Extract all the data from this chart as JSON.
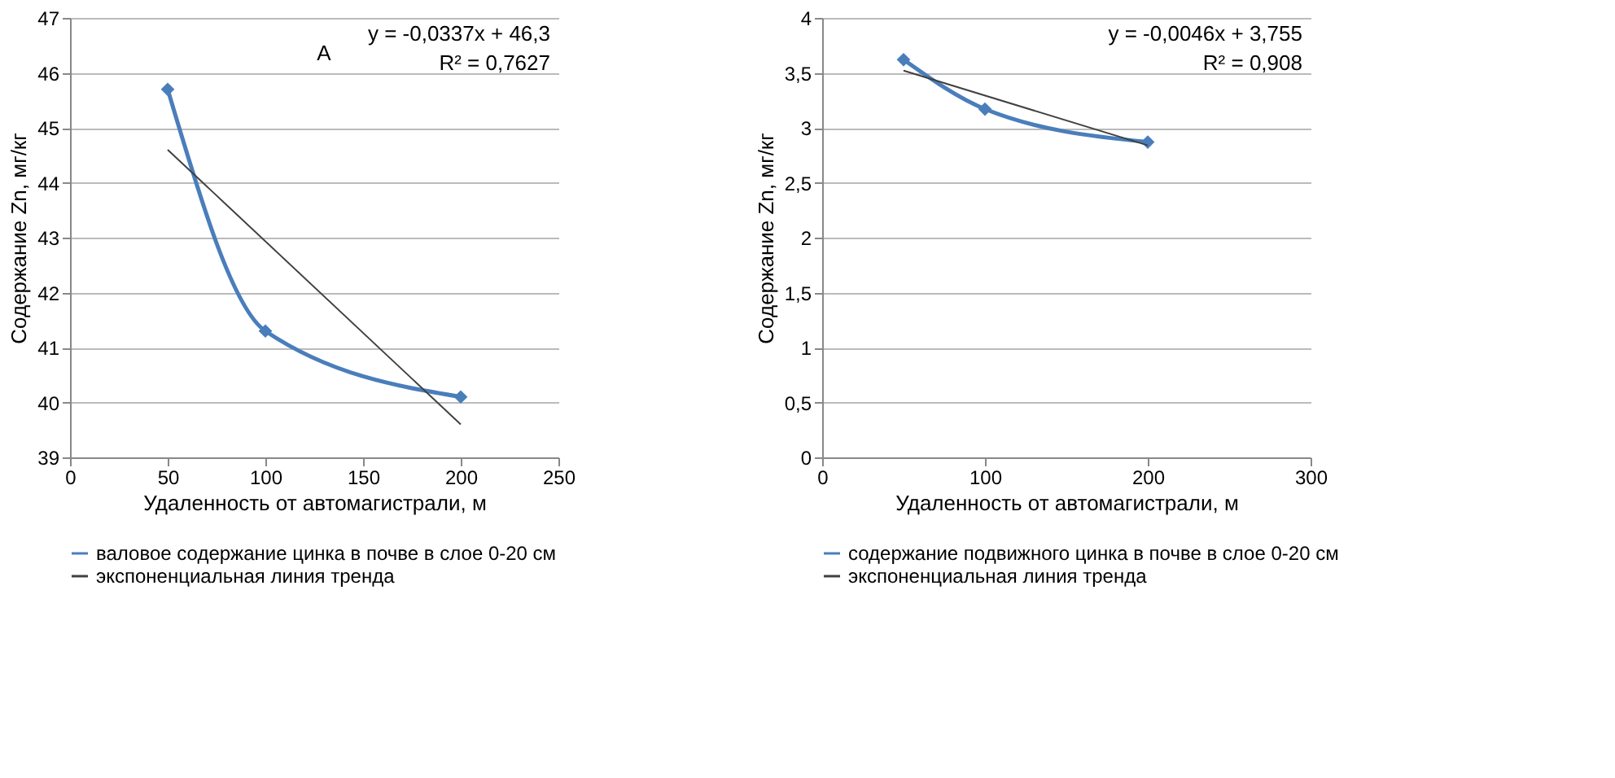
{
  "chart_data": [
    {
      "type": "line",
      "xlabel": "Удаленность от автомагистрали, м",
      "ylabel": "Содержание Zn, мг/кг",
      "xlim": [
        0,
        250
      ],
      "xticks": [
        0,
        50,
        100,
        150,
        200,
        250
      ],
      "ylim": [
        39,
        47
      ],
      "yticks": [
        39,
        40,
        41,
        42,
        43,
        44,
        45,
        46,
        47
      ],
      "grid": "y",
      "legend": "bottom",
      "marker": "diamond",
      "series": [
        {
          "name": "валовое содержание цинка в почве в слое 0-20 см",
          "color": "#4a7ebb",
          "x": [
            50,
            100,
            200
          ],
          "values": [
            45.7,
            41.3,
            40.1
          ]
        },
        {
          "name": "экспоненциальная линия тренда",
          "color": "#404040",
          "type": "line",
          "marker": "none",
          "x": [
            50,
            200
          ],
          "values": [
            44.6,
            39.6
          ]
        }
      ],
      "annotations": [
        "y = -0,0337x + 46,3",
        "R² = 0,7627",
        "А"
      ]
    },
    {
      "type": "line",
      "xlabel": "Удаленность от автомагистрали, м",
      "ylabel": "Содержание Zn, мг/кг",
      "xlim": [
        0,
        300
      ],
      "xticks": [
        0,
        100,
        200,
        300
      ],
      "ylim": [
        0,
        4
      ],
      "yticks": [
        0,
        {
          "value": 0.5,
          "label": "0,5"
        },
        1,
        {
          "value": 1.5,
          "label": "1,5"
        },
        2,
        {
          "value": 2.5,
          "label": "2,5"
        },
        3,
        {
          "value": 3.5,
          "label": "3,5"
        },
        4
      ],
      "grid": "y",
      "legend": "bottom",
      "marker": "diamond",
      "series": [
        {
          "name": "содержание подвижного цинка в почве в слое 0-20 см",
          "color": "#4a7ebb",
          "x": [
            50,
            100,
            200
          ],
          "values": [
            3.62,
            3.17,
            2.87
          ]
        },
        {
          "name": "экспоненциальная линия тренда",
          "color": "#404040",
          "type": "line",
          "marker": "none",
          "x": [
            50,
            200
          ],
          "values": [
            3.52,
            2.84
          ]
        }
      ],
      "annotations": [
        "y = -0,0046x + 3,755",
        "R² = 0,908"
      ]
    }
  ]
}
